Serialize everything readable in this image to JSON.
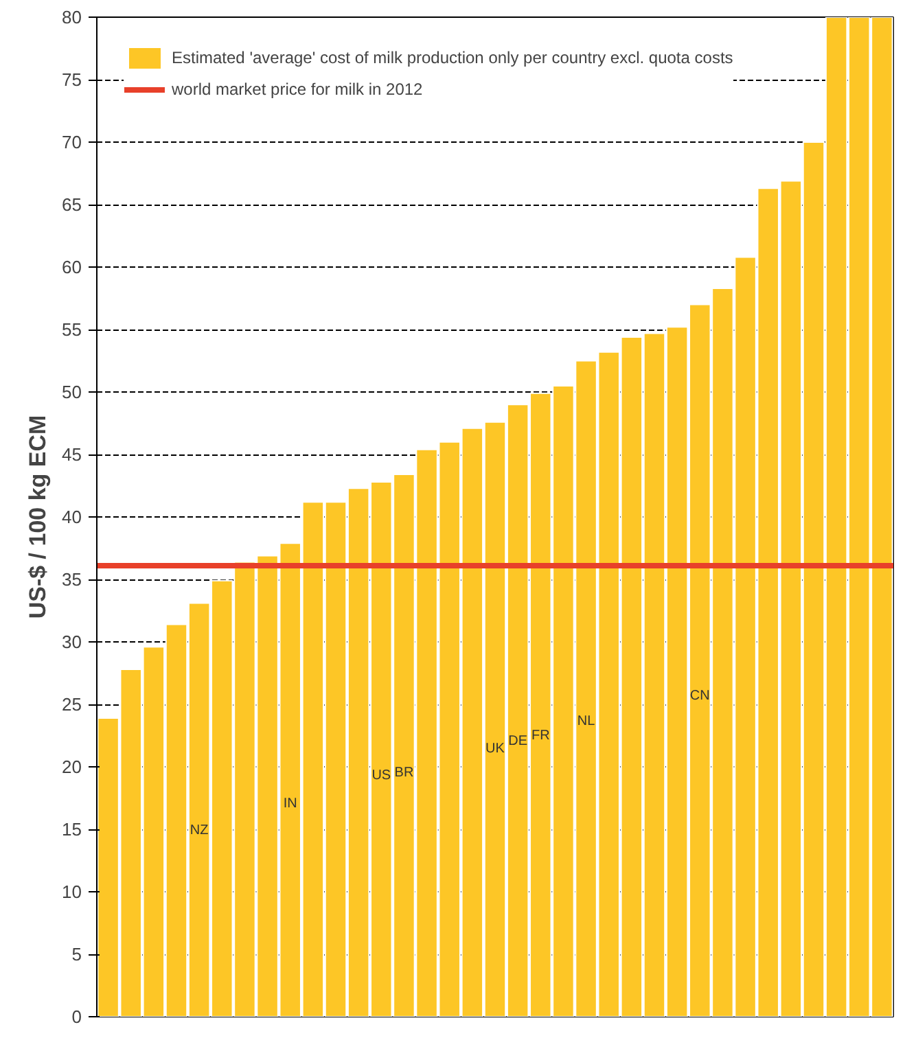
{
  "chart_data": {
    "type": "bar",
    "ylabel": "US-$ / 100 kg ECM",
    "categories": [
      null,
      null,
      null,
      null,
      "NZ",
      null,
      null,
      null,
      "IN",
      null,
      null,
      null,
      "US",
      "BR",
      null,
      null,
      null,
      "UK",
      "DE",
      "FR",
      null,
      "NL",
      null,
      null,
      null,
      null,
      "CN",
      null,
      null,
      null,
      null,
      null,
      null,
      null,
      null
    ],
    "series": [
      {
        "name": "Estimated 'average' cost of milk production only per country excl. quota costs",
        "color": "#fdc626",
        "values": [
          23.9,
          27.8,
          29.6,
          31.4,
          33.1,
          34.9,
          36.4,
          36.9,
          37.9,
          41.2,
          41.2,
          42.3,
          42.8,
          43.4,
          45.4,
          46.0,
          47.1,
          47.6,
          49.0,
          49.9,
          50.5,
          52.5,
          53.2,
          54.4,
          54.7,
          55.2,
          57.0,
          58.3,
          60.8,
          66.3,
          66.9,
          70.0,
          80,
          80,
          80
        ]
      }
    ],
    "ref_lines": [
      {
        "axis": "y",
        "value": 36.1,
        "label": "world market price for milk in 2012",
        "color": "#e8402a"
      }
    ],
    "ylim": [
      0,
      80
    ],
    "yticks": [
      0,
      5,
      10,
      15,
      20,
      25,
      30,
      35,
      40,
      45,
      50,
      55,
      60,
      65,
      70,
      75,
      80
    ],
    "grid": "y",
    "legend": "top left"
  }
}
